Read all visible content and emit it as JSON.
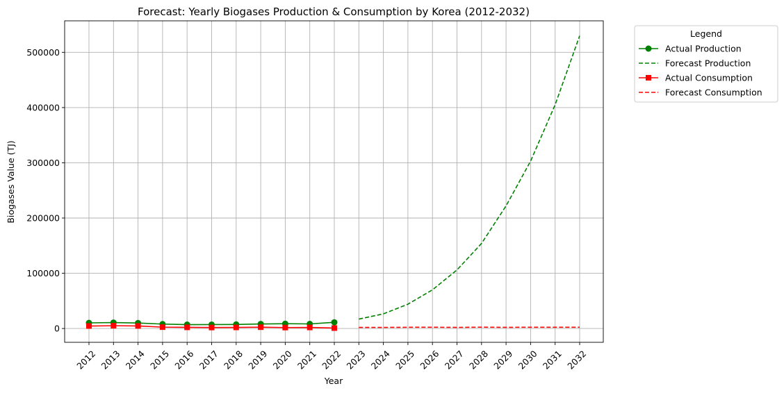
{
  "chart_data": {
    "type": "line",
    "title": "Forecast: Yearly Biogases Production & Consumption by Korea (2012-2032)",
    "xlabel": "Year",
    "ylabel": "Biogases Value (TJ)",
    "ylim": [
      -25000,
      557000
    ],
    "yticks": [
      0,
      100000,
      200000,
      300000,
      400000,
      500000
    ],
    "yticklabels": [
      "0",
      "100000",
      "200000",
      "300000",
      "400000",
      "500000"
    ],
    "x": [
      "2012",
      "2013",
      "2014",
      "2015",
      "2016",
      "2017",
      "2018",
      "2019",
      "2020",
      "2021",
      "2022",
      "2023",
      "2024",
      "2025",
      "2026",
      "2027",
      "2028",
      "2029",
      "2030",
      "2031",
      "2032"
    ],
    "grid": true,
    "legend_title": "Legend",
    "legend_position": "outside-top-right",
    "series": [
      {
        "name": "Actual Production",
        "color": "#008000",
        "style": "solid",
        "marker": "circle",
        "x": [
          "2012",
          "2013",
          "2014",
          "2015",
          "2016",
          "2017",
          "2018",
          "2019",
          "2020",
          "2021",
          "2022"
        ],
        "values": [
          10200,
          10700,
          9900,
          8000,
          7000,
          7100,
          7300,
          8200,
          8700,
          8300,
          11200
        ]
      },
      {
        "name": "Forecast Production",
        "color": "#008000",
        "style": "dashed",
        "marker": "none",
        "x": [
          "2023",
          "2024",
          "2025",
          "2026",
          "2027",
          "2028",
          "2029",
          "2030",
          "2031",
          "2032"
        ],
        "values": [
          17000,
          26500,
          44000,
          70000,
          106000,
          154000,
          222000,
          303000,
          405000,
          530000
        ]
      },
      {
        "name": "Actual Consumption",
        "color": "#ff0000",
        "style": "solid",
        "marker": "square",
        "x": [
          "2012",
          "2013",
          "2014",
          "2015",
          "2016",
          "2017",
          "2018",
          "2019",
          "2020",
          "2021",
          "2022"
        ],
        "values": [
          4500,
          5000,
          4600,
          2500,
          2100,
          1800,
          2000,
          2400,
          1700,
          1900,
          800
        ]
      },
      {
        "name": "Forecast Consumption",
        "color": "#ff0000",
        "style": "dashed",
        "marker": "none",
        "x": [
          "2023",
          "2024",
          "2025",
          "2026",
          "2027",
          "2028",
          "2029",
          "2030",
          "2031",
          "2032"
        ],
        "values": [
          2000,
          2000,
          2200,
          2300,
          2000,
          2400,
          2100,
          2300,
          2200,
          2300
        ]
      }
    ]
  }
}
